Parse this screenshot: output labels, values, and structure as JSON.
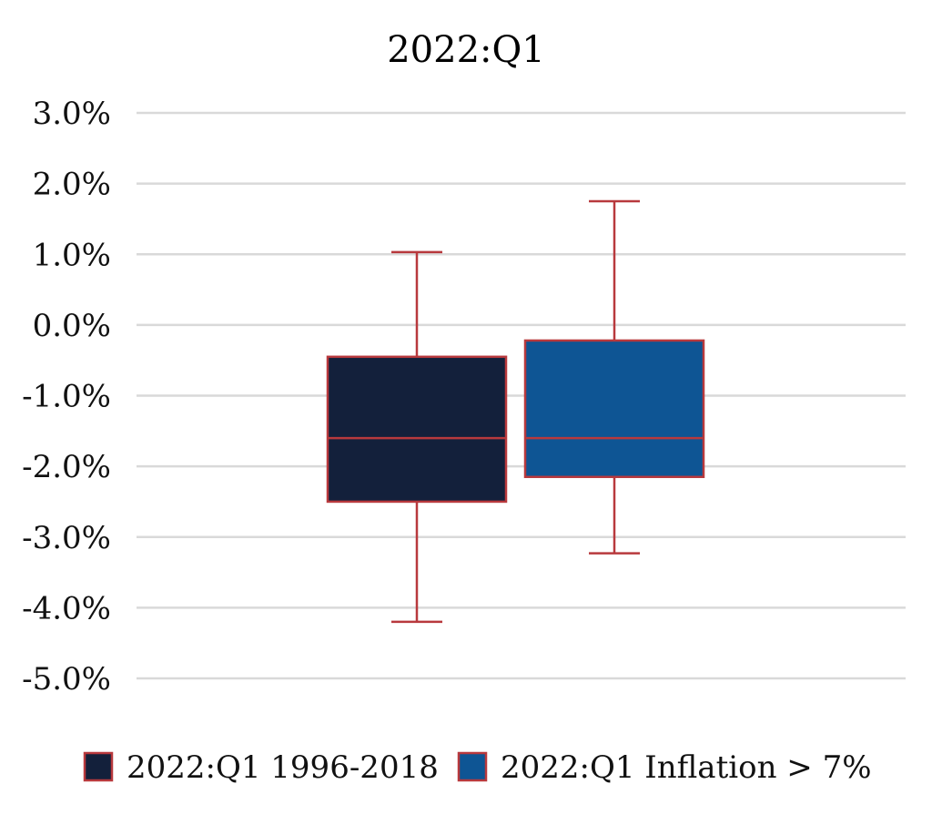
{
  "chart_data": {
    "type": "box",
    "title": "2022:Q1",
    "xlabel": "",
    "ylabel": "",
    "ylim": [
      -5.0,
      3.0
    ],
    "yticks": [
      3.0,
      2.0,
      1.0,
      0.0,
      -1.0,
      -2.0,
      -3.0,
      -4.0,
      -5.0
    ],
    "ytick_labels": [
      "3.0%",
      "2.0%",
      "1.0%",
      "0.0%",
      "-1.0%",
      "-2.0%",
      "-3.0%",
      "-4.0%",
      "-5.0%"
    ],
    "grid": true,
    "legend_position": "bottom",
    "series": [
      {
        "name": "2022:Q1 1996-2018",
        "min": -4.2,
        "q1": -2.5,
        "median": -1.6,
        "q3": -0.45,
        "max": 1.03,
        "color": "#13203b"
      },
      {
        "name": "2022:Q1 Inflation > 7%",
        "min": -3.23,
        "q1": -2.15,
        "median": -1.6,
        "q3": -0.22,
        "max": 1.75,
        "color": "#0e5594"
      }
    ],
    "whisker_color": "#b8393d",
    "border_color": "#b8393d",
    "grid_color": "#d9d9d9"
  }
}
